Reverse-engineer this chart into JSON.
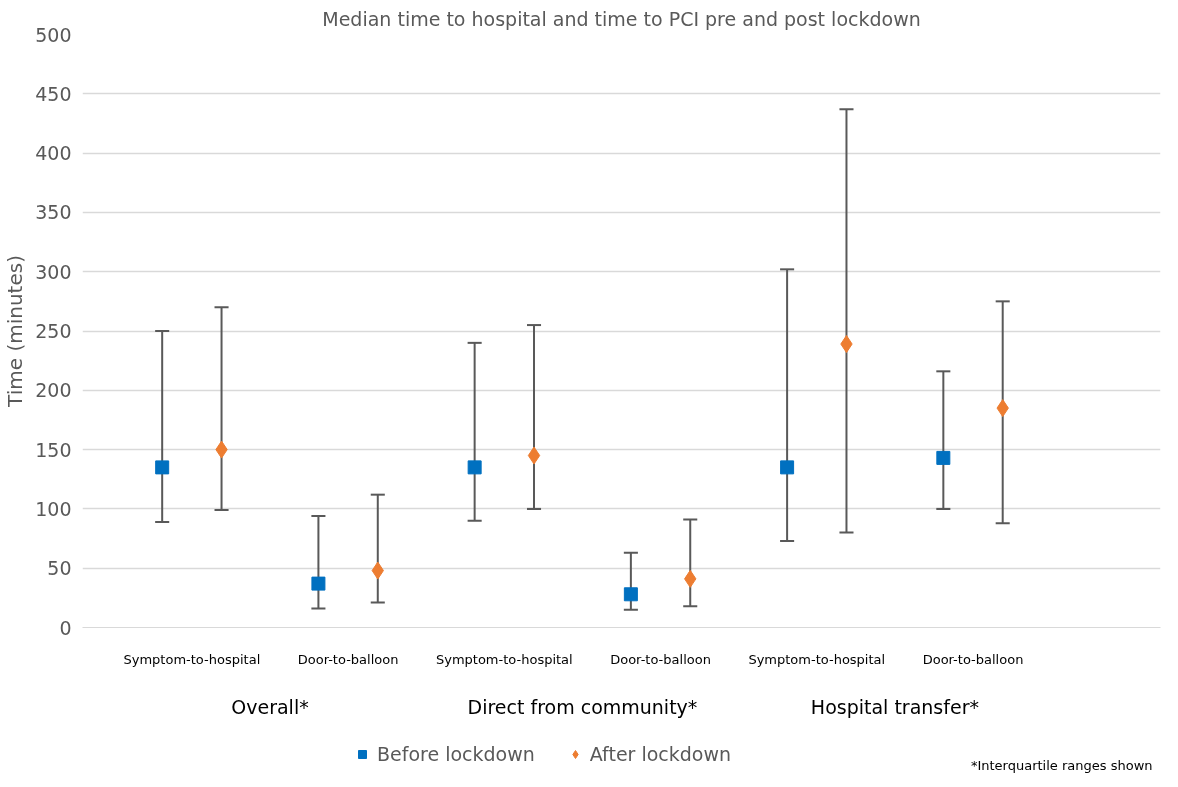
{
  "chart_data": {
    "type": "scatter",
    "title": "Median time to hospital and time to PCI pre and post lockdown",
    "ylabel": "Time (minutes)",
    "categories": [
      "Symptom-to-hospital",
      "Door-to-balloon",
      "Symptom-to-hospital",
      "Door-to-balloon",
      "Symptom-to-hospital",
      "Door-to-balloon"
    ],
    "series": [
      {
        "name": "Before lockdown",
        "color": "#0070c0",
        "marker": "square",
        "values": [
          135,
          37,
          135,
          28,
          135,
          143
        ],
        "errors": [
          [
            89,
            250
          ],
          [
            16,
            94
          ],
          [
            90,
            240
          ],
          [
            15,
            63
          ],
          [
            73,
            302
          ],
          [
            100,
            216
          ]
        ]
      },
      {
        "name": "After lockdown",
        "color": "#ed7d31",
        "marker": "diamond",
        "values": [
          150,
          48,
          145,
          41,
          239,
          185
        ],
        "errors": [
          [
            99,
            270
          ],
          [
            21,
            112
          ],
          [
            100,
            255
          ],
          [
            18,
            91
          ],
          [
            80,
            437
          ],
          [
            88,
            275
          ]
        ]
      }
    ],
    "annotations": [
      "Overall*",
      "Direct from community*",
      "Hospital transfer*",
      "*Interquartile ranges shown"
    ],
    "ylim": [
      0,
      500
    ],
    "yticks": [
      0,
      50,
      100,
      150,
      200,
      250,
      300,
      350,
      400,
      450,
      500
    ],
    "grid": "y",
    "legend": "bottom"
  }
}
